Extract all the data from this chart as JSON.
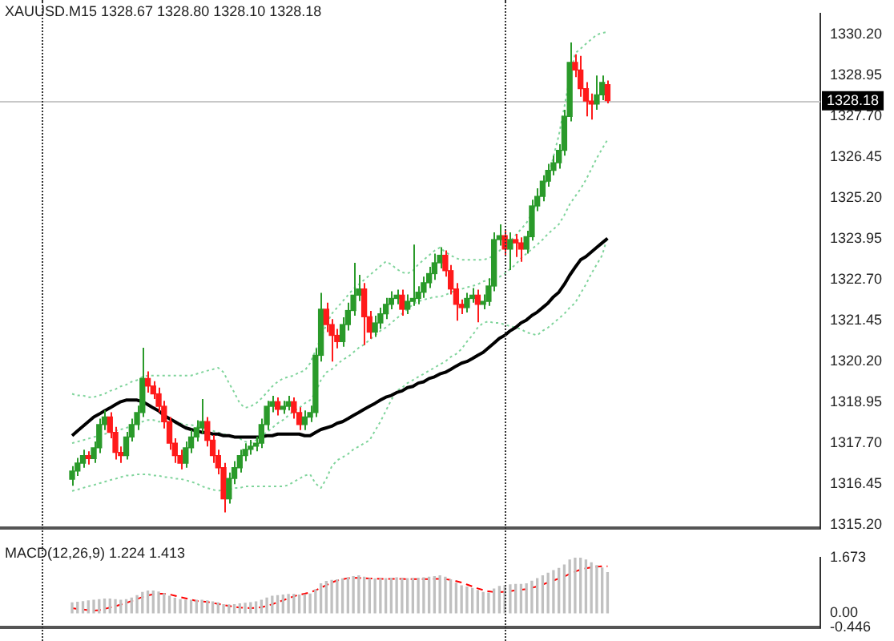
{
  "chart_data": [
    {
      "type": "candlestick",
      "title": "XAUUSD.M15 1328.67 1328.80 1328.10 1328.18",
      "categories": [
        null,
        null,
        null,
        null,
        null,
        null,
        null,
        null,
        null,
        null,
        null,
        null,
        null,
        null,
        null,
        null,
        null,
        null,
        null,
        null,
        null,
        null,
        null,
        null,
        null,
        null,
        null,
        null,
        null,
        null,
        null,
        null,
        null,
        null,
        null,
        null,
        null,
        null,
        null,
        null,
        null,
        null,
        null,
        null,
        null,
        null,
        null,
        null,
        null,
        null,
        null,
        null,
        null,
        null,
        null,
        null,
        null,
        null,
        null,
        null,
        null,
        null,
        null,
        null,
        null,
        null,
        null,
        null,
        null,
        null,
        null,
        null,
        null,
        null,
        null,
        null,
        null,
        null,
        null,
        null,
        null,
        null,
        null,
        null,
        null,
        null,
        null,
        null,
        null,
        null,
        null,
        null,
        null,
        null,
        null,
        null,
        null,
        null,
        null,
        null
      ],
      "ohlc": [
        [
          1316.6,
          1317.0,
          1316.4,
          1316.85
        ],
        [
          1316.85,
          1317.25,
          1316.7,
          1317.09
        ],
        [
          1317.09,
          1317.5,
          1316.95,
          1317.32
        ],
        [
          1317.32,
          1317.45,
          1317.05,
          1317.23
        ],
        [
          1317.23,
          1317.75,
          1317.1,
          1317.56
        ],
        [
          1317.56,
          1318.45,
          1317.4,
          1318.27
        ],
        [
          1318.27,
          1318.7,
          1318.1,
          1318.5
        ],
        [
          1318.5,
          1318.65,
          1317.85,
          1318.03
        ],
        [
          1318.03,
          1318.2,
          1317.2,
          1317.42
        ],
        [
          1317.42,
          1317.6,
          1317.1,
          1317.32
        ],
        [
          1317.32,
          1318.05,
          1317.2,
          1317.89
        ],
        [
          1317.89,
          1318.45,
          1317.75,
          1318.27
        ],
        [
          1318.27,
          1318.85,
          1318.1,
          1318.64
        ],
        [
          1318.64,
          1320.62,
          1318.5,
          1319.68
        ],
        [
          1319.68,
          1319.9,
          1319.25,
          1319.45
        ],
        [
          1319.45,
          1319.6,
          1319.05,
          1319.21
        ],
        [
          1319.21,
          1319.4,
          1318.65,
          1318.83
        ],
        [
          1318.83,
          1319.0,
          1318.15,
          1318.36
        ],
        [
          1318.36,
          1318.5,
          1317.5,
          1317.7
        ],
        [
          1317.7,
          1317.85,
          1317.1,
          1317.32
        ],
        [
          1317.32,
          1317.5,
          1316.9,
          1317.09
        ],
        [
          1317.09,
          1317.75,
          1316.95,
          1317.56
        ],
        [
          1317.56,
          1318.1,
          1317.4,
          1317.89
        ],
        [
          1317.89,
          1318.4,
          1317.75,
          1318.17
        ],
        [
          1318.17,
          1319.05,
          1318.0,
          1318.36
        ],
        [
          1318.36,
          1318.5,
          1317.6,
          1317.79
        ],
        [
          1317.79,
          1317.95,
          1317.1,
          1317.32
        ],
        [
          1317.32,
          1317.5,
          1316.75,
          1316.95
        ],
        [
          1316.95,
          1317.1,
          1315.58,
          1316.0
        ],
        [
          1316.0,
          1316.8,
          1315.85,
          1316.62
        ],
        [
          1316.62,
          1317.15,
          1316.45,
          1316.95
        ],
        [
          1316.95,
          1317.5,
          1316.8,
          1317.32
        ],
        [
          1317.32,
          1317.7,
          1317.15,
          1317.51
        ],
        [
          1317.51,
          1317.8,
          1317.35,
          1317.61
        ],
        [
          1317.61,
          1317.9,
          1317.45,
          1317.7
        ],
        [
          1317.7,
          1318.45,
          1317.55,
          1318.27
        ],
        [
          1318.27,
          1319.0,
          1318.1,
          1318.83
        ],
        [
          1318.83,
          1319.15,
          1318.65,
          1318.97
        ],
        [
          1318.97,
          1319.1,
          1318.55,
          1318.74
        ],
        [
          1318.74,
          1319.0,
          1318.6,
          1318.83
        ],
        [
          1318.83,
          1319.15,
          1318.7,
          1318.97
        ],
        [
          1318.97,
          1319.1,
          1318.45,
          1318.64
        ],
        [
          1318.64,
          1318.8,
          1318.1,
          1318.27
        ],
        [
          1318.27,
          1318.7,
          1318.1,
          1318.5
        ],
        [
          1318.5,
          1318.85,
          1318.35,
          1318.64
        ],
        [
          1318.64,
          1320.6,
          1318.5,
          1320.39
        ],
        [
          1320.39,
          1322.3,
          1320.2,
          1321.8
        ],
        [
          1321.8,
          1322.0,
          1321.1,
          1321.33
        ],
        [
          1321.33,
          1321.5,
          1320.2,
          1321.0
        ],
        [
          1321.0,
          1321.2,
          1320.6,
          1320.81
        ],
        [
          1320.81,
          1321.55,
          1320.65,
          1321.33
        ],
        [
          1321.33,
          1322.0,
          1321.15,
          1321.76
        ],
        [
          1321.76,
          1323.22,
          1321.6,
          1322.23
        ],
        [
          1322.23,
          1322.85,
          1322.05,
          1322.42
        ],
        [
          1322.42,
          1322.6,
          1320.7,
          1321.57
        ],
        [
          1321.57,
          1321.75,
          1320.9,
          1321.1
        ],
        [
          1321.1,
          1321.6,
          1320.95,
          1321.38
        ],
        [
          1321.38,
          1321.85,
          1321.2,
          1321.66
        ],
        [
          1321.66,
          1322.15,
          1321.5,
          1321.95
        ],
        [
          1321.95,
          1322.35,
          1321.8,
          1322.13
        ],
        [
          1322.13,
          1322.4,
          1321.95,
          1322.23
        ],
        [
          1322.23,
          1322.4,
          1321.6,
          1321.8
        ],
        [
          1321.8,
          1322.25,
          1321.65,
          1322.04
        ],
        [
          1322.04,
          1323.78,
          1321.9,
          1322.13
        ],
        [
          1322.13,
          1322.5,
          1321.95,
          1322.32
        ],
        [
          1322.32,
          1322.8,
          1322.15,
          1322.61
        ],
        [
          1322.61,
          1323.1,
          1322.45,
          1322.89
        ],
        [
          1322.89,
          1323.5,
          1322.7,
          1323.22
        ],
        [
          1323.22,
          1323.7,
          1323.05,
          1323.45
        ],
        [
          1323.45,
          1323.6,
          1322.8,
          1322.98
        ],
        [
          1322.98,
          1323.15,
          1322.25,
          1322.42
        ],
        [
          1322.42,
          1322.6,
          1321.45,
          1321.95
        ],
        [
          1321.95,
          1322.1,
          1321.65,
          1321.85
        ],
        [
          1321.85,
          1322.3,
          1321.7,
          1322.13
        ],
        [
          1322.13,
          1322.45,
          1322.0,
          1322.23
        ],
        [
          1322.23,
          1322.4,
          1321.4,
          1321.95
        ],
        [
          1321.95,
          1322.25,
          1321.8,
          1322.04
        ],
        [
          1322.04,
          1322.75,
          1321.9,
          1322.51
        ],
        [
          1322.51,
          1324.15,
          1322.35,
          1323.93
        ],
        [
          1323.93,
          1324.4,
          1323.75,
          1324.05
        ],
        [
          1324.05,
          1324.2,
          1323.45,
          1323.64
        ],
        [
          1323.64,
          1324.15,
          1323.0,
          1323.93
        ],
        [
          1323.93,
          1324.1,
          1323.4,
          1323.83
        ],
        [
          1323.83,
          1324.0,
          1323.25,
          1323.64
        ],
        [
          1323.64,
          1324.2,
          1323.5,
          1324.02
        ],
        [
          1324.02,
          1325.15,
          1323.9,
          1324.96
        ],
        [
          1324.96,
          1325.5,
          1324.8,
          1325.25
        ],
        [
          1325.25,
          1325.9,
          1325.1,
          1325.72
        ],
        [
          1325.72,
          1326.25,
          1325.55,
          1326.05
        ],
        [
          1326.05,
          1326.5,
          1325.9,
          1326.28
        ],
        [
          1326.28,
          1326.85,
          1326.1,
          1326.66
        ],
        [
          1326.66,
          1327.9,
          1326.5,
          1327.7
        ],
        [
          1327.7,
          1329.96,
          1327.55,
          1329.35
        ],
        [
          1329.35,
          1329.6,
          1328.9,
          1329.12
        ],
        [
          1329.12,
          1329.55,
          1328.3,
          1328.55
        ],
        [
          1328.55,
          1328.75,
          1327.7,
          1328.17
        ],
        [
          1328.17,
          1328.4,
          1327.6,
          1328.08
        ],
        [
          1328.08,
          1328.95,
          1327.9,
          1328.36
        ],
        [
          1328.36,
          1328.95,
          1328.2,
          1328.74
        ],
        [
          1328.67,
          1328.8,
          1328.1,
          1328.18
        ]
      ],
      "series": [
        {
          "type": "line",
          "color": "#000000",
          "line_style": "solid",
          "values": [
            1317.93,
            1318.08,
            1318.22,
            1318.36,
            1318.5,
            1318.59,
            1318.69,
            1318.78,
            1318.88,
            1318.97,
            1319.02,
            1319.02,
            1319.02,
            1318.97,
            1318.88,
            1318.78,
            1318.69,
            1318.55,
            1318.45,
            1318.36,
            1318.26,
            1318.17,
            1318.12,
            1318.08,
            1318.03,
            1318.03,
            1317.98,
            1317.98,
            1317.93,
            1317.93,
            1317.89,
            1317.89,
            1317.89,
            1317.89,
            1317.89,
            1317.89,
            1317.93,
            1317.93,
            1317.98,
            1317.98,
            1317.98,
            1317.98,
            1317.98,
            1317.93,
            1317.93,
            1318.03,
            1318.12,
            1318.17,
            1318.22,
            1318.31,
            1318.36,
            1318.45,
            1318.55,
            1318.64,
            1318.74,
            1318.83,
            1318.92,
            1319.02,
            1319.11,
            1319.16,
            1319.25,
            1319.3,
            1319.4,
            1319.44,
            1319.54,
            1319.58,
            1319.68,
            1319.73,
            1319.82,
            1319.87,
            1319.96,
            1320.06,
            1320.15,
            1320.2,
            1320.29,
            1320.39,
            1320.48,
            1320.62,
            1320.76,
            1320.91,
            1321.0,
            1321.14,
            1321.24,
            1321.38,
            1321.47,
            1321.61,
            1321.71,
            1321.85,
            1321.99,
            1322.18,
            1322.32,
            1322.56,
            1322.84,
            1323.08,
            1323.31,
            1323.41,
            1323.55,
            1323.69,
            1323.83,
            1323.97
          ]
        },
        {
          "type": "line",
          "color": "#7fd49b",
          "line_style": "dotted",
          "values": [
            1319.21,
            1319.16,
            1319.16,
            1319.11,
            1319.11,
            1319.16,
            1319.21,
            1319.3,
            1319.35,
            1319.44,
            1319.49,
            1319.58,
            1319.63,
            1319.73,
            1319.77,
            1319.77,
            1319.77,
            1319.77,
            1319.77,
            1319.77,
            1319.77,
            1319.77,
            1319.77,
            1319.82,
            1319.87,
            1319.92,
            1319.96,
            1320.01,
            1319.87,
            1319.54,
            1319.25,
            1318.92,
            1318.78,
            1318.83,
            1318.92,
            1319.07,
            1319.25,
            1319.44,
            1319.58,
            1319.68,
            1319.73,
            1319.77,
            1319.87,
            1319.92,
            1320.15,
            1320.53,
            1320.91,
            1321.33,
            1321.66,
            1321.85,
            1322.04,
            1322.23,
            1322.42,
            1322.56,
            1322.7,
            1322.84,
            1322.98,
            1323.12,
            1323.26,
            1323.17,
            1323.03,
            1322.93,
            1322.89,
            1322.98,
            1323.17,
            1323.31,
            1323.45,
            1323.59,
            1323.69,
            1323.55,
            1323.45,
            1323.36,
            1323.31,
            1323.31,
            1323.31,
            1323.31,
            1323.31,
            1323.36,
            1323.45,
            1323.59,
            1323.74,
            1323.88,
            1324.07,
            1324.25,
            1324.44,
            1324.73,
            1325.1,
            1325.48,
            1325.81,
            1326.47,
            1327.13,
            1327.98,
            1328.88,
            1329.63,
            1329.77,
            1329.92,
            1330.06,
            1330.2,
            1330.25,
            1330.29
          ]
        },
        {
          "type": "line",
          "color": "#7fd49b",
          "line_style": "dotted",
          "values": [
            1317.7,
            1317.75,
            1317.79,
            1317.84,
            1317.89,
            1317.93,
            1317.98,
            1318.03,
            1318.08,
            1318.12,
            1318.17,
            1318.22,
            1318.31,
            1318.36,
            1318.41,
            1318.41,
            1318.36,
            1318.36,
            1318.36,
            1318.31,
            1318.31,
            1318.26,
            1318.26,
            1318.22,
            1318.17,
            1318.12,
            1318.08,
            1318.03,
            1317.98,
            1317.93,
            1317.89,
            1317.84,
            1317.75,
            1317.7,
            1317.79,
            1317.93,
            1318.03,
            1318.17,
            1318.31,
            1318.41,
            1318.55,
            1318.69,
            1318.78,
            1318.92,
            1319.02,
            1319.25,
            1319.63,
            1319.87,
            1319.96,
            1320.11,
            1320.25,
            1320.34,
            1320.48,
            1320.62,
            1320.72,
            1320.86,
            1321.0,
            1321.14,
            1321.24,
            1321.38,
            1321.52,
            1321.66,
            1321.8,
            1321.95,
            1322.04,
            1322.09,
            1322.13,
            1322.18,
            1322.18,
            1322.23,
            1322.32,
            1322.37,
            1322.42,
            1322.47,
            1322.51,
            1322.56,
            1322.65,
            1322.7,
            1322.75,
            1322.79,
            1322.89,
            1323.03,
            1323.17,
            1323.36,
            1323.5,
            1323.64,
            1323.78,
            1323.93,
            1324.11,
            1324.25,
            1324.4,
            1324.68,
            1325.01,
            1325.25,
            1325.48,
            1325.76,
            1326.09,
            1326.42,
            1326.71,
            1326.99
          ]
        },
        {
          "type": "line",
          "color": "#7fd49b",
          "line_style": "dotted",
          "values": [
            1316.24,
            1316.28,
            1316.33,
            1316.38,
            1316.42,
            1316.47,
            1316.52,
            1316.57,
            1316.61,
            1316.66,
            1316.71,
            1316.71,
            1316.75,
            1316.75,
            1316.75,
            1316.71,
            1316.71,
            1316.66,
            1316.66,
            1316.61,
            1316.61,
            1316.57,
            1316.52,
            1316.47,
            1316.38,
            1316.33,
            1316.28,
            1316.24,
            1316.28,
            1316.28,
            1316.33,
            1316.33,
            1316.38,
            1316.38,
            1316.38,
            1316.38,
            1316.38,
            1316.38,
            1316.38,
            1316.38,
            1316.42,
            1316.52,
            1316.61,
            1316.71,
            1316.75,
            1316.47,
            1316.33,
            1316.61,
            1316.99,
            1317.18,
            1317.27,
            1317.37,
            1317.51,
            1317.6,
            1317.7,
            1317.79,
            1318.08,
            1318.36,
            1318.69,
            1319.02,
            1319.3,
            1319.4,
            1319.54,
            1319.63,
            1319.73,
            1319.82,
            1319.92,
            1320.01,
            1320.11,
            1320.2,
            1320.34,
            1320.43,
            1320.58,
            1320.81,
            1321.0,
            1321.24,
            1321.38,
            1321.43,
            1321.38,
            1321.38,
            1321.33,
            1321.28,
            1321.24,
            1321.19,
            1321.09,
            1321.05,
            1321.0,
            1321.14,
            1321.24,
            1321.38,
            1321.52,
            1321.66,
            1321.85,
            1321.99,
            1322.28,
            1322.56,
            1322.89,
            1323.17,
            1323.45,
            1324.02
          ]
        }
      ],
      "ylim": [
        1315.1,
        1330.85
      ],
      "yticks": [
        {
          "value": 1315.2,
          "label": "1315.20"
        },
        1316.45,
        {
          "value": 1317.7,
          "label": "1317.70"
        },
        1318.95,
        {
          "value": 1320.2,
          "label": "1320.20"
        },
        1321.45,
        {
          "value": 1322.7,
          "label": "1322.70"
        },
        1323.95,
        {
          "value": 1325.2,
          "label": "1325.20"
        },
        1326.45,
        {
          "value": 1327.7,
          "label": "1327.70"
        },
        1328.95,
        {
          "value": 1330.2,
          "label": "1330.20"
        }
      ],
      "ref_lines": [
        {
          "axis": "y",
          "value": 1328.18,
          "label": "1328.18",
          "color": "#c8c8c8"
        }
      ],
      "tick_labels": "y"
    },
    {
      "type": "bar",
      "title": "MACD(12,26,9) 1.224 1.413",
      "categories": [
        null,
        null,
        null,
        null,
        null,
        null,
        null,
        null,
        null,
        null,
        null,
        null,
        null,
        null,
        null,
        null,
        null,
        null,
        null,
        null,
        null,
        null,
        null,
        null,
        null,
        null,
        null,
        null,
        null,
        null,
        null,
        null,
        null,
        null,
        null,
        null,
        null,
        null,
        null,
        null,
        null,
        null,
        null,
        null,
        null,
        null,
        null,
        null,
        null,
        null,
        null,
        null,
        null,
        null,
        null,
        null,
        null,
        null,
        null,
        null,
        null,
        null,
        null,
        null,
        null,
        null,
        null,
        null,
        null,
        null,
        null,
        null,
        null,
        null,
        null,
        null,
        null,
        null,
        null,
        null,
        null,
        null,
        null,
        null,
        null,
        null,
        null,
        null,
        null,
        null,
        null,
        null,
        null,
        null,
        null,
        null,
        null,
        null,
        null,
        null
      ],
      "series": [
        {
          "color": "#c0c0c0",
          "values": [
            0.3,
            0.32,
            0.34,
            0.36,
            0.38,
            0.4,
            0.42,
            0.42,
            0.4,
            0.38,
            0.4,
            0.45,
            0.52,
            0.62,
            0.66,
            0.66,
            0.63,
            0.58,
            0.5,
            0.44,
            0.4,
            0.38,
            0.38,
            0.38,
            0.38,
            0.36,
            0.33,
            0.3,
            0.25,
            0.24,
            0.25,
            0.27,
            0.29,
            0.31,
            0.33,
            0.38,
            0.45,
            0.5,
            0.52,
            0.54,
            0.56,
            0.56,
            0.54,
            0.55,
            0.57,
            0.7,
            0.88,
            0.95,
            0.98,
            1.0,
            1.03,
            1.06,
            1.1,
            1.12,
            1.08,
            1.04,
            1.03,
            1.03,
            1.04,
            1.05,
            1.06,
            1.04,
            1.04,
            1.04,
            1.05,
            1.06,
            1.08,
            1.1,
            1.12,
            1.08,
            1.0,
            0.9,
            0.82,
            0.78,
            0.74,
            0.68,
            0.62,
            0.6,
            0.72,
            0.8,
            0.82,
            0.85,
            0.86,
            0.86,
            0.88,
            0.96,
            1.04,
            1.12,
            1.2,
            1.28,
            1.35,
            1.45,
            1.6,
            1.67,
            1.66,
            1.6,
            1.52,
            1.43,
            1.36,
            1.22
          ]
        },
        {
          "type": "line",
          "color": "#ff0000",
          "line_style": "dashed",
          "values": [
            0.14,
            0.12,
            0.1,
            0.08,
            0.07,
            0.08,
            0.12,
            0.16,
            0.2,
            0.25,
            0.3,
            0.36,
            0.42,
            0.48,
            0.53,
            0.56,
            0.58,
            0.58,
            0.56,
            0.52,
            0.48,
            0.44,
            0.4,
            0.36,
            0.35,
            0.33,
            0.3,
            0.27,
            0.24,
            0.21,
            0.18,
            0.16,
            0.15,
            0.14,
            0.15,
            0.17,
            0.21,
            0.26,
            0.32,
            0.38,
            0.44,
            0.5,
            0.55,
            0.58,
            0.62,
            0.68,
            0.76,
            0.84,
            0.92,
            0.98,
            1.02,
            1.05,
            1.06,
            1.06,
            1.05,
            1.04,
            1.04,
            1.03,
            1.03,
            1.03,
            1.03,
            1.03,
            1.02,
            1.02,
            1.02,
            1.02,
            1.02,
            1.03,
            1.03,
            1.02,
            1.0,
            0.96,
            0.92,
            0.86,
            0.8,
            0.74,
            0.69,
            0.65,
            0.63,
            0.63,
            0.64,
            0.66,
            0.68,
            0.7,
            0.72,
            0.76,
            0.8,
            0.86,
            0.92,
            0.98,
            1.04,
            1.1,
            1.18,
            1.25,
            1.31,
            1.35,
            1.38,
            1.4,
            1.41,
            1.41
          ]
        }
      ],
      "ylim": [
        -0.446,
        1.673
      ],
      "yticks": [
        1.673,
        {
          "value": 0,
          "label": "0.00"
        },
        -0.446
      ],
      "tick_labels": "y"
    }
  ]
}
